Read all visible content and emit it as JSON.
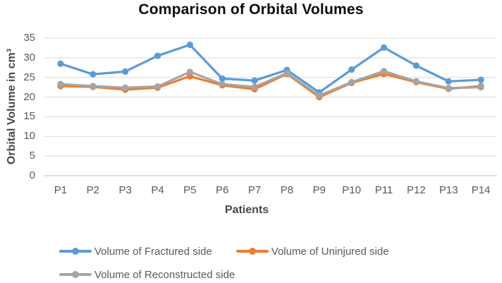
{
  "chart_data": {
    "type": "line",
    "title": "Comparison of Orbital Volumes",
    "xlabel": "Patients",
    "ylabel": "Orbital Volume in cm³",
    "categories": [
      "P1",
      "P2",
      "P3",
      "P4",
      "P5",
      "P6",
      "P7",
      "P8",
      "P9",
      "P10",
      "P11",
      "P12",
      "P13",
      "P14"
    ],
    "series": [
      {
        "name": "Volume of Fractured side",
        "color": "#5B9BD5",
        "values": [
          28.5,
          25.8,
          26.5,
          30.5,
          33.3,
          24.7,
          24.2,
          26.9,
          21.2,
          27.0,
          32.6,
          28.0,
          24.0,
          24.4
        ]
      },
      {
        "name": "Volume of Uninjured side",
        "color": "#ED7D31",
        "values": [
          22.8,
          22.6,
          21.9,
          22.4,
          25.3,
          23.0,
          22.0,
          25.9,
          20.0,
          23.6,
          25.9,
          23.8,
          22.1,
          22.8
        ]
      },
      {
        "name": "Volume of Reconstructed side",
        "color": "#A5A5A5",
        "values": [
          23.3,
          22.8,
          22.4,
          22.7,
          26.4,
          23.3,
          22.6,
          26.1,
          20.4,
          23.8,
          26.6,
          24.0,
          22.3,
          22.5
        ]
      }
    ],
    "ylim": [
      0,
      35
    ],
    "yticks": [
      0,
      5,
      10,
      15,
      20,
      25,
      30,
      35
    ],
    "grid": true,
    "legend_position": "bottom"
  },
  "colors": {
    "gridline": "#D9D9D9",
    "axis_line": "#BFBFBF",
    "tick_text": "#595959",
    "title_text": "#0d0d0d"
  }
}
